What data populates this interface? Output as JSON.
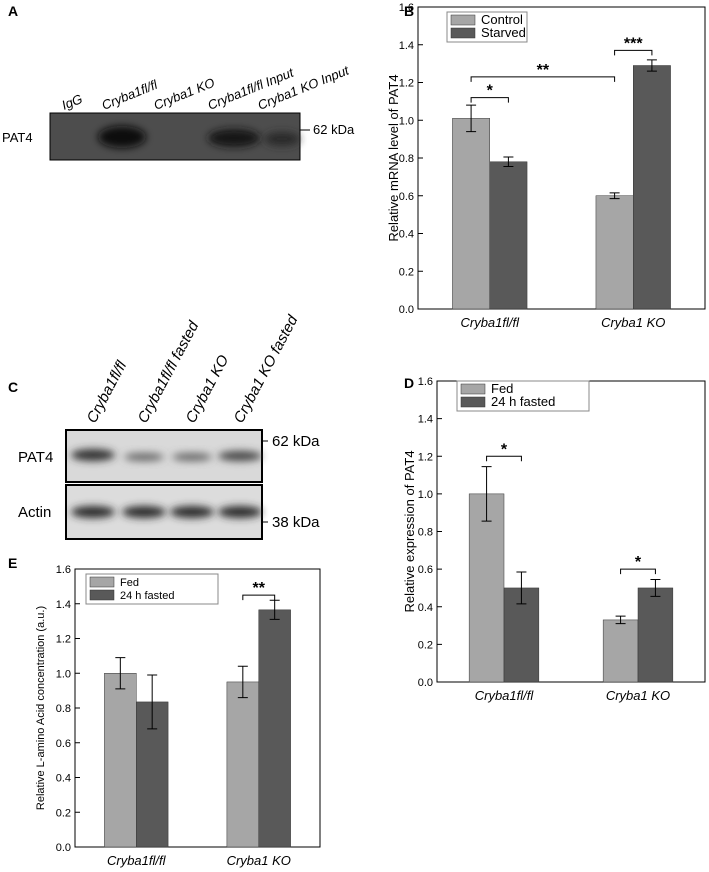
{
  "panels": [
    "A",
    "B",
    "C",
    "D",
    "E"
  ],
  "blot_a": {
    "lanes": [
      "IgG",
      "Cryba1fl/fl",
      "Cryba1 KO",
      "Cryba1fl/fl Input",
      "Cryba1 KO Input"
    ],
    "row": "PAT4",
    "marker": "62 kDa"
  },
  "blot_c": {
    "lanes": [
      "Cryba1fl/fl",
      "Cryba1fl/fl fasted",
      "Cryba1 KO",
      "Cryba1 KO fasted"
    ],
    "rows": [
      "PAT4",
      "Actin"
    ],
    "markers": [
      "62 kDa",
      "38 kDa"
    ]
  },
  "chart_data": [
    {
      "type": "bar",
      "ylabel": "Relative mRNA level of PAT4",
      "categories": [
        "Cryba1fl/fl",
        "Cryba1 KO"
      ],
      "series": [
        {
          "name": "Control",
          "color": "#a6a6a6",
          "values": [
            1.01,
            0.6
          ],
          "errors": [
            0.07,
            0.015
          ]
        },
        {
          "name": "Starved",
          "color": "#595959",
          "values": [
            0.78,
            1.29
          ],
          "errors": [
            0.025,
            0.03
          ]
        }
      ],
      "ylim": [
        0,
        1.6
      ],
      "yticks": [
        {
          "value": 0,
          "label": "0.0"
        },
        0.2,
        0.4,
        0.6,
        0.8,
        {
          "value": 1,
          "label": "1.0"
        },
        1.2,
        1.4,
        1.6
      ],
      "annotations": [
        "*",
        "***",
        "**"
      ]
    },
    {
      "type": "bar",
      "ylabel": "Relative expression of PAT4",
      "categories": [
        "Cryba1fl/fl",
        "Cryba1 KO"
      ],
      "series": [
        {
          "name": "Fed",
          "color": "#a6a6a6",
          "values": [
            1.0,
            0.33
          ],
          "errors": [
            0.145,
            0.02
          ]
        },
        {
          "name": "24 h fasted",
          "color": "#595959",
          "values": [
            0.5,
            0.5
          ],
          "errors": [
            0.085,
            0.045
          ]
        }
      ],
      "ylim": [
        0,
        1.6
      ],
      "yticks": [
        {
          "value": 0,
          "label": "0.0"
        },
        0.2,
        0.4,
        0.6,
        0.8,
        {
          "value": 1,
          "label": "1.0"
        },
        1.2,
        1.4,
        1.6
      ],
      "annotations": [
        "*",
        "*"
      ]
    },
    {
      "type": "bar",
      "ylabel": "Relative L-amino Acid concentration (a.u.)",
      "categories": [
        "Cryba1fl/fl",
        "Cryba1 KO"
      ],
      "series": [
        {
          "name": "Fed",
          "color": "#a6a6a6",
          "values": [
            1.0,
            0.95
          ],
          "errors": [
            0.09,
            0.09
          ]
        },
        {
          "name": "24 h fasted",
          "color": "#595959",
          "values": [
            0.835,
            1.365
          ],
          "errors": [
            0.155,
            0.055
          ]
        }
      ],
      "ylim": [
        0,
        1.6
      ],
      "yticks": [
        {
          "value": 0,
          "label": "0.0"
        },
        0.2,
        0.4,
        0.6,
        0.8,
        {
          "value": 1,
          "label": "1.0"
        },
        1.2,
        1.4,
        1.6
      ],
      "annotations": [
        "**"
      ]
    }
  ]
}
